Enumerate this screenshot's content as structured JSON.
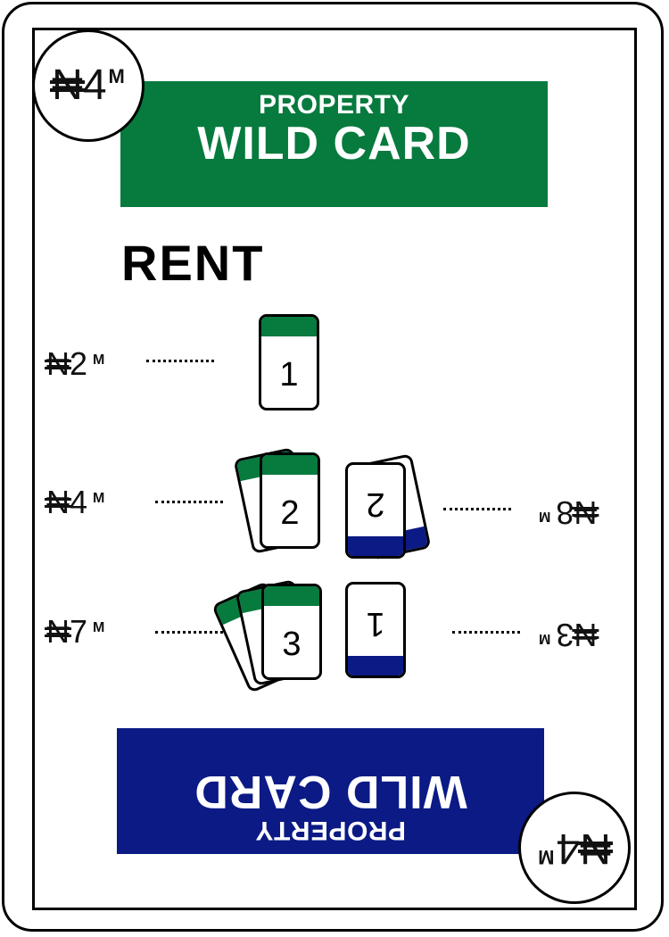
{
  "card": {
    "value_top": {
      "symbol": "₦",
      "amount": "4",
      "unit": "M"
    },
    "value_bottom": {
      "symbol": "₦",
      "amount": "4",
      "unit": "M"
    },
    "top_banner": {
      "line1": "PROPERTY",
      "line2": "WILD CARD",
      "color": "#077a3e"
    },
    "bottom_banner": {
      "line1": "PROPERTY",
      "line2": "WILD CARD",
      "color": "#0b1a85"
    },
    "rent_heading": "RENT",
    "rent_left": [
      {
        "symbol": "₦",
        "amount": "2",
        "unit": "M",
        "cards": "1"
      },
      {
        "symbol": "₦",
        "amount": "4",
        "unit": "M",
        "cards": "2"
      },
      {
        "symbol": "₦",
        "amount": "7",
        "unit": "M",
        "cards": "3"
      }
    ],
    "rent_right": [
      {
        "symbol": "₦",
        "amount": "8",
        "unit": "M",
        "cards": "2"
      },
      {
        "symbol": "₦",
        "amount": "3",
        "unit": "M",
        "cards": "1"
      }
    ],
    "colors": {
      "green": "#077a3e",
      "blue": "#0b1a85"
    }
  }
}
